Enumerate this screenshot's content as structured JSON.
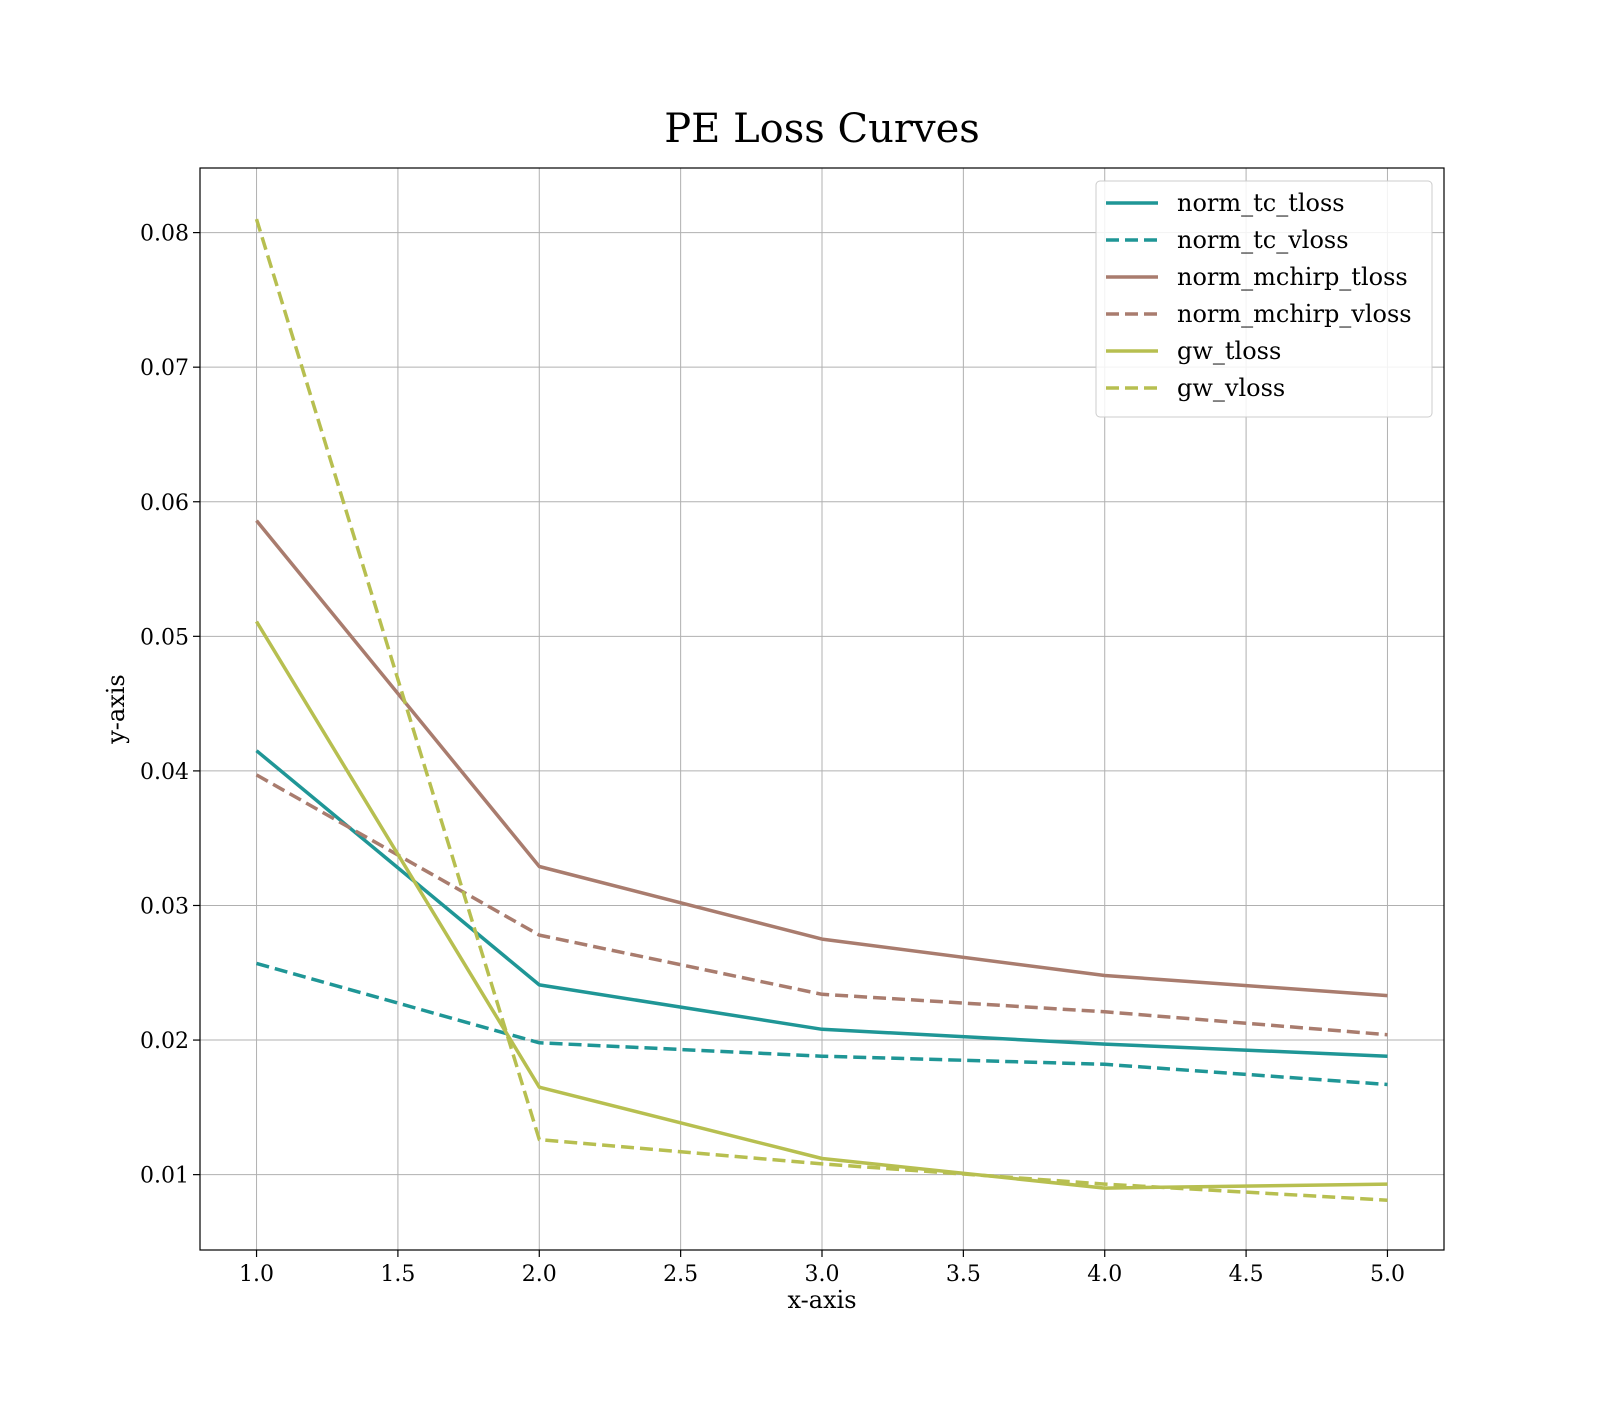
{
  "chart_data": {
    "type": "line",
    "title": "PE Loss Curves",
    "xlabel": "x-axis",
    "ylabel": "y-axis",
    "xlim": [
      0.8,
      5.2
    ],
    "ylim": [
      0.0044,
      0.0848
    ],
    "xticks": [
      1.0,
      1.5,
      2.0,
      2.5,
      3.0,
      3.5,
      4.0,
      4.5,
      5.0
    ],
    "xtick_labels": [
      "1.0",
      "1.5",
      "2.0",
      "2.5",
      "3.0",
      "3.5",
      "4.0",
      "4.5",
      "5.0"
    ],
    "yticks": [
      0.01,
      0.02,
      0.03,
      0.04,
      0.05,
      0.06,
      0.07,
      0.08
    ],
    "ytick_labels": [
      "0.01",
      "0.02",
      "0.03",
      "0.04",
      "0.05",
      "0.06",
      "0.07",
      "0.08"
    ],
    "grid": true,
    "legend_position": "top-right",
    "x": [
      1,
      2,
      3,
      4,
      5
    ],
    "series": [
      {
        "name": "norm_tc_tloss",
        "color": "#1f9696",
        "dash": "solid",
        "values": [
          0.0415,
          0.0241,
          0.0208,
          0.0197,
          0.0188
        ]
      },
      {
        "name": "norm_tc_vloss",
        "color": "#1f9696",
        "dash": "dashed",
        "values": [
          0.0257,
          0.0198,
          0.0188,
          0.0182,
          0.0167
        ]
      },
      {
        "name": "norm_mchirp_tloss",
        "color": "#a97c6e",
        "dash": "solid",
        "values": [
          0.0586,
          0.0329,
          0.0275,
          0.0248,
          0.0233
        ]
      },
      {
        "name": "norm_mchirp_vloss",
        "color": "#a97c6e",
        "dash": "dashed",
        "values": [
          0.0397,
          0.0278,
          0.0234,
          0.0221,
          0.0204
        ]
      },
      {
        "name": "gw_tloss",
        "color": "#b7bf50",
        "dash": "solid",
        "values": [
          0.0511,
          0.0165,
          0.0112,
          0.009,
          0.0093
        ]
      },
      {
        "name": "gw_vloss",
        "color": "#b7bf50",
        "dash": "dashed",
        "values": [
          0.081,
          0.0126,
          0.0108,
          0.0093,
          0.0081
        ]
      }
    ]
  }
}
